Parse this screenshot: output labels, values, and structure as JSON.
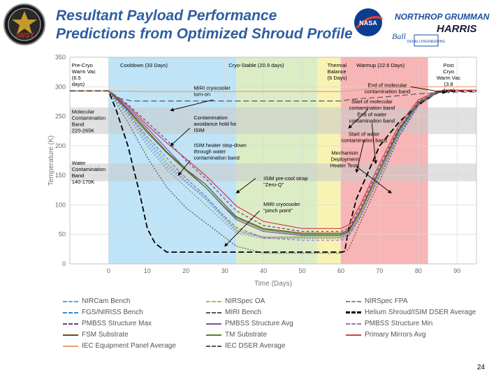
{
  "title": "Resultant Payload Performance Predictions from Optimized Shroud Profile",
  "logos": {
    "jwst": "JWST",
    "nasa": "NASA",
    "northrop": "NORTHROP GRUMMAN",
    "harris": "HARRIS",
    "ball": "Ball",
    "denali": "DENALI ENGINEERING"
  },
  "page_number": "24",
  "chart_data": {
    "type": "line",
    "xlabel": "Time (Days)",
    "ylabel": "Temperature (K)",
    "xlim": [
      -10,
      95
    ],
    "ylim": [
      0,
      350
    ],
    "xticks": [
      0,
      10,
      20,
      30,
      40,
      50,
      60,
      70,
      80,
      90
    ],
    "yticks": [
      0,
      50,
      100,
      150,
      200,
      250,
      300,
      350
    ],
    "grid": true,
    "colors": {
      "blue": "#b4dff6",
      "green": "#d6eabc",
      "yellow": "#f7f1a6",
      "red": "#f6a8a8",
      "grey": "#c8c8c8"
    },
    "regions": [
      {
        "label": "Pre-Cryo Warm Vac (6.5 days)",
        "x0": -6.5,
        "x1": 0,
        "color": "white"
      },
      {
        "label": "Cooldown (33 Days)",
        "x0": 0,
        "x1": 33,
        "color": "blue"
      },
      {
        "label": "Cryo-Stable (20.9 days)",
        "x0": 33,
        "x1": 53.9,
        "color": "green"
      },
      {
        "label": "Thermal Balance (6 Days)",
        "x0": 53.9,
        "x1": 59.9,
        "color": "yellow"
      },
      {
        "label": "Warmup (22.6 Days)",
        "x0": 59.9,
        "x1": 82.5,
        "color": "red"
      },
      {
        "label": "Post Cryo Warm Vac (3.8 days)",
        "x0": 82.5,
        "x1": 86.3,
        "color": "white"
      }
    ],
    "bands": [
      {
        "label": "Molecular Contamination Band 220-265K",
        "y0": 220,
        "y1": 265
      },
      {
        "label": "Water Contamination Band 140-170K",
        "y0": 140,
        "y1": 170
      }
    ],
    "annotations": [
      "MIRI cryocooler turn-on",
      "Contamination avoidance hold for ISIM",
      "ISIM heater step-down through water contamination band",
      "ISIM pre-cool strap \"Zero-Q\"",
      "MIRI cryocooler \"pinch point\"",
      "End of molecular contamination band",
      "Start of molecular contamination band",
      "End of water contamination band",
      "Start of water contamination band",
      "Mechanism Deployment Heater Tests"
    ],
    "series": [
      {
        "name": "NIRCam Bench",
        "color": "#5aa7d8",
        "dash": "2,2",
        "x": [
          -10,
          0,
          5,
          10,
          15,
          20,
          25,
          30,
          33,
          40,
          50,
          60,
          62,
          65,
          70,
          75,
          80,
          85,
          88,
          95
        ],
        "y": [
          293,
          293,
          255,
          205,
          165,
          138,
          110,
          75,
          55,
          45,
          45,
          45,
          50,
          80,
          150,
          220,
          270,
          292,
          294,
          294
        ]
      },
      {
        "name": "NIRSpec OA",
        "color": "#c8b23a",
        "dash": "2,2",
        "x": [
          -10,
          0,
          5,
          10,
          15,
          20,
          25,
          30,
          33,
          40,
          50,
          60,
          62,
          65,
          70,
          75,
          80,
          85,
          88,
          95
        ],
        "y": [
          293,
          293,
          260,
          215,
          175,
          145,
          115,
          80,
          60,
          46,
          46,
          46,
          52,
          85,
          155,
          225,
          272,
          292,
          294,
          294
        ]
      },
      {
        "name": "NIRSpec FPA",
        "color": "#8a8a8a",
        "dash": "2,2",
        "x": [
          -10,
          0,
          5,
          10,
          15,
          20,
          25,
          30,
          33,
          40,
          50,
          60,
          62,
          65,
          70,
          75,
          80,
          85,
          88,
          95
        ],
        "y": [
          293,
          293,
          250,
          200,
          160,
          130,
          100,
          70,
          52,
          43,
          43,
          43,
          48,
          78,
          148,
          218,
          268,
          291,
          294,
          294
        ]
      },
      {
        "name": "FGS/NIRISS Bench",
        "color": "#3a86c8",
        "dash": "2,2",
        "x": [
          -10,
          0,
          5,
          10,
          15,
          20,
          25,
          30,
          33,
          40,
          50,
          60,
          62,
          65,
          70,
          75,
          80,
          85,
          88,
          95
        ],
        "y": [
          293,
          293,
          258,
          210,
          170,
          140,
          112,
          78,
          57,
          45,
          45,
          45,
          51,
          82,
          152,
          222,
          270,
          292,
          294,
          294
        ]
      },
      {
        "name": "MIRI Bench",
        "color": "#555555",
        "dash": "2,2",
        "x": [
          -10,
          0,
          5,
          10,
          15,
          20,
          25,
          30,
          33,
          40,
          50,
          60,
          62,
          65,
          70,
          75,
          80,
          85,
          88,
          95
        ],
        "y": [
          293,
          293,
          240,
          180,
          130,
          95,
          70,
          45,
          30,
          18,
          18,
          18,
          25,
          70,
          140,
          215,
          268,
          291,
          294,
          294
        ]
      },
      {
        "name": "Helium Shroud/ISIM DSER Average",
        "color": "#000000",
        "dash": "8,4",
        "x": [
          -10,
          0,
          2,
          5,
          8,
          10,
          12,
          15,
          25,
          33,
          40,
          50,
          60,
          61,
          62,
          64,
          66,
          70,
          75,
          80,
          85,
          88,
          95
        ],
        "y": [
          293,
          293,
          260,
          200,
          120,
          60,
          35,
          20,
          20,
          20,
          20,
          20,
          20,
          21,
          60,
          110,
          140,
          200,
          240,
          270,
          290,
          293,
          293
        ]
      },
      {
        "name": "PMBSS Structure Max",
        "color": "#6a3e9c",
        "dash": "4,3",
        "x": [
          -10,
          0,
          5,
          10,
          15,
          20,
          25,
          30,
          33,
          40,
          50,
          60,
          62,
          65,
          70,
          75,
          80,
          85,
          88,
          95
        ],
        "y": [
          293,
          293,
          270,
          240,
          210,
          175,
          145,
          110,
          90,
          65,
          55,
          55,
          60,
          95,
          165,
          230,
          275,
          292,
          294,
          294
        ]
      },
      {
        "name": "PMBSS Structure Avg",
        "color": "#7b4fb0",
        "dash": "",
        "x": [
          -10,
          0,
          5,
          10,
          15,
          20,
          25,
          30,
          33,
          40,
          50,
          60,
          62,
          65,
          70,
          75,
          80,
          85,
          88,
          95
        ],
        "y": [
          293,
          293,
          265,
          230,
          195,
          160,
          130,
          95,
          75,
          55,
          48,
          48,
          54,
          88,
          158,
          225,
          272,
          291,
          294,
          294
        ]
      },
      {
        "name": "PMBSS Structure Min",
        "color": "#9a6fc8",
        "dash": "4,3",
        "x": [
          -10,
          0,
          5,
          10,
          15,
          20,
          25,
          30,
          33,
          40,
          50,
          60,
          62,
          65,
          70,
          75,
          80,
          85,
          88,
          95
        ],
        "y": [
          293,
          293,
          255,
          215,
          180,
          145,
          115,
          80,
          62,
          44,
          40,
          40,
          46,
          80,
          150,
          218,
          268,
          290,
          294,
          294
        ]
      },
      {
        "name": "FSM Substrate",
        "color": "#6b4a1e",
        "dash": "",
        "x": [
          -10,
          0,
          5,
          10,
          15,
          20,
          25,
          30,
          33,
          40,
          50,
          60,
          62,
          65,
          70,
          75,
          80,
          85,
          88,
          95
        ],
        "y": [
          293,
          293,
          262,
          225,
          190,
          160,
          135,
          100,
          80,
          60,
          52,
          52,
          57,
          90,
          160,
          228,
          274,
          292,
          294,
          294
        ]
      },
      {
        "name": "TM Substrate",
        "color": "#4f7f2e",
        "dash": "",
        "x": [
          -10,
          0,
          5,
          10,
          15,
          20,
          25,
          30,
          33,
          40,
          50,
          60,
          62,
          65,
          70,
          75,
          80,
          85,
          88,
          95
        ],
        "y": [
          293,
          293,
          260,
          222,
          188,
          158,
          130,
          96,
          78,
          58,
          50,
          50,
          55,
          88,
          158,
          226,
          273,
          292,
          294,
          294
        ]
      },
      {
        "name": "Primary Mirrors Avg",
        "color": "#d63a4a",
        "dash": "",
        "x": [
          -10,
          0,
          5,
          10,
          15,
          20,
          25,
          30,
          33,
          40,
          50,
          60,
          62,
          65,
          70,
          75,
          80,
          85,
          88,
          95
        ],
        "y": [
          293,
          293,
          268,
          235,
          205,
          178,
          150,
          118,
          98,
          72,
          60,
          60,
          66,
          100,
          170,
          235,
          278,
          293,
          294,
          294
        ]
      },
      {
        "name": "IEC Equipment Panel Average",
        "color": "#e8a070",
        "dash": "",
        "x": [
          -10,
          0,
          10,
          20,
          33,
          40,
          50,
          60,
          62,
          65,
          70,
          75,
          80,
          85,
          88,
          95
        ],
        "y": [
          293,
          293,
          292,
          292,
          292,
          292,
          292,
          292,
          293,
          295,
          298,
          299,
          300,
          300,
          300,
          300
        ]
      },
      {
        "name": "IEC DSER Average",
        "color": "#555555",
        "dash": "8,4",
        "x": [
          -10,
          0,
          3,
          6,
          10,
          15,
          20,
          33,
          40,
          50,
          60,
          62,
          65,
          70,
          75,
          80,
          85,
          88,
          95
        ],
        "y": [
          293,
          293,
          280,
          276,
          276,
          276,
          276,
          276,
          276,
          276,
          276,
          278,
          280,
          282,
          285,
          288,
          290,
          291,
          291
        ]
      }
    ]
  }
}
